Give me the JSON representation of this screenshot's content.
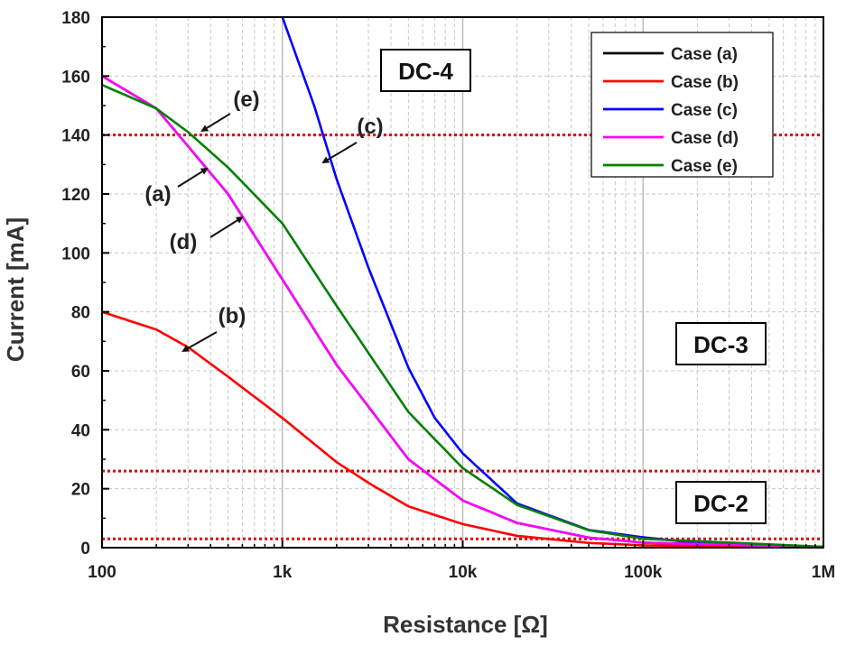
{
  "chart_data": {
    "type": "line",
    "xlabel": "Resistance [Ω]",
    "ylabel": "Current [mA]",
    "xscale": "log",
    "xlim": [
      100,
      1000000
    ],
    "ylim": [
      0,
      180
    ],
    "grid": true,
    "x_ticks": [
      {
        "value": 100,
        "label": "100"
      },
      {
        "value": 1000,
        "label": "1k"
      },
      {
        "value": 10000,
        "label": "10k"
      },
      {
        "value": 100000,
        "label": "100k"
      },
      {
        "value": 1000000,
        "label": "1M"
      }
    ],
    "y_ticks": [
      0,
      20,
      40,
      60,
      80,
      100,
      120,
      140,
      160,
      180
    ],
    "series": [
      {
        "name": "Case (a)",
        "color": "#000000",
        "x": [
          100,
          200,
          500,
          1000,
          2000,
          5000,
          10000,
          20000,
          50000,
          100000,
          1000000
        ],
        "y": [
          160,
          149,
          120,
          91,
          62,
          30,
          16,
          8.4,
          3.4,
          1.7,
          0.17
        ]
      },
      {
        "name": "Case (b)",
        "color": "#ff0000",
        "x": [
          100,
          200,
          300,
          500,
          1000,
          2000,
          3000,
          5000,
          10000,
          20000,
          50000,
          100000,
          1000000
        ],
        "y": [
          80,
          74,
          68,
          58,
          44,
          29,
          22,
          14,
          8,
          4,
          1.6,
          0.8,
          0.08
        ]
      },
      {
        "name": "Case (c)",
        "color": "#0000ff",
        "x": [
          1000,
          1500,
          2000,
          3000,
          5000,
          7000,
          10000,
          20000,
          50000,
          100000,
          200000,
          500000,
          1000000
        ],
        "y": [
          180,
          150,
          125,
          95,
          61,
          44,
          32,
          15,
          6,
          3.5,
          1.6,
          0.6,
          0.3
        ]
      },
      {
        "name": "Case (d)",
        "color": "#ff00ff",
        "x": [
          100,
          200,
          500,
          1000,
          2000,
          5000,
          10000,
          20000,
          50000,
          100000,
          1000000
        ],
        "y": [
          160,
          149,
          120,
          91,
          62,
          30,
          16,
          8.4,
          3.4,
          1.7,
          0.17
        ]
      },
      {
        "name": "Case (e)",
        "color": "#008000",
        "x": [
          100,
          200,
          300,
          500,
          1000,
          2000,
          5000,
          10000,
          20000,
          50000,
          100000,
          1000000
        ],
        "y": [
          157,
          149,
          141,
          129,
          110,
          82,
          46,
          27,
          14.5,
          5.9,
          3,
          0.3
        ]
      }
    ],
    "reference_lines": [
      {
        "y": 140,
        "color": "#dd0000",
        "style": "dotted"
      },
      {
        "y": 26,
        "color": "#dd0000",
        "style": "dotted"
      },
      {
        "y": 3,
        "color": "#dd0000",
        "style": "dotted"
      }
    ],
    "region_labels": [
      "DC-4",
      "DC-3",
      "DC-2"
    ],
    "annotations": [
      "(a)",
      "(b)",
      "(c)",
      "(d)",
      "(e)"
    ],
    "legend_position": "top-right"
  }
}
